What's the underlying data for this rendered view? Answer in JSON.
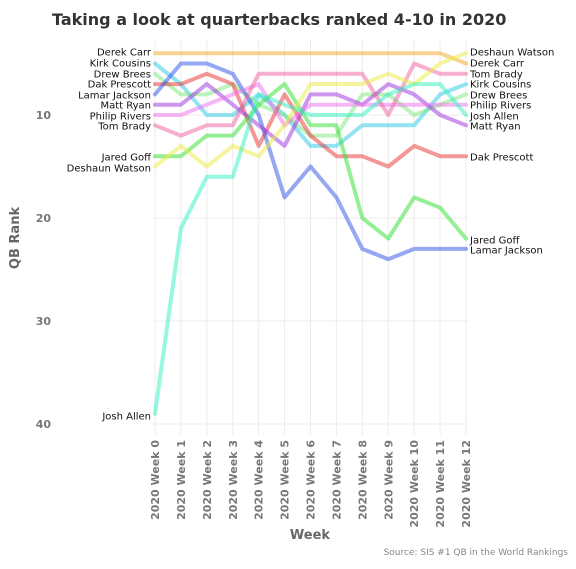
{
  "chart_data": {
    "type": "line",
    "title": "Taking a look at quarterbacks ranked 4-10 in 2020",
    "xlabel": "Week",
    "ylabel": "QB Rank",
    "caption": "Source: SIS #1 QB in the World Rankings",
    "categories": [
      "2020 Week 0",
      "2020 Week 1",
      "2020 Week 2",
      "2020 Week 3",
      "2020 Week 4",
      "2020 Week 5",
      "2020 Week 6",
      "2020 Week 7",
      "2020 Week 8",
      "2020 Week 9",
      "2020 Week 10",
      "2020 Week 11",
      "2020 Week 12"
    ],
    "ylim": [
      1,
      41
    ],
    "y_reversed": true,
    "yticks": [
      10,
      20,
      30,
      40
    ],
    "grid": true,
    "series": [
      {
        "name": "Derek Carr",
        "color": "#f5a623",
        "values": [
          4,
          4,
          4,
          4,
          4,
          4,
          4,
          4,
          4,
          4,
          4,
          4,
          5
        ]
      },
      {
        "name": "Kirk Cousins",
        "color": "#29c7e8",
        "values": [
          5,
          7,
          10,
          10,
          8,
          10,
          13,
          13,
          11,
          11,
          11,
          8,
          7
        ]
      },
      {
        "name": "Drew Brees",
        "color": "#7ce87c",
        "values": [
          6,
          8,
          8,
          7,
          9,
          10,
          12,
          12,
          8,
          8,
          10,
          9,
          8
        ]
      },
      {
        "name": "Dak Prescott",
        "color": "#e83030",
        "values": [
          7,
          7,
          6,
          7,
          13,
          8,
          12,
          14,
          14,
          15,
          13,
          14,
          14
        ]
      },
      {
        "name": "Lamar Jackson",
        "color": "#2e50e8",
        "values": [
          8,
          5,
          5,
          6,
          10,
          18,
          15,
          18,
          23,
          24,
          23,
          23,
          23
        ]
      },
      {
        "name": "Matt Ryan",
        "color": "#9b2ee0",
        "values": [
          9,
          9,
          7,
          9,
          11,
          13,
          8,
          8,
          9,
          7,
          8,
          10,
          11
        ]
      },
      {
        "name": "Philip Rivers",
        "color": "#f070f0",
        "values": [
          10,
          10,
          9,
          8,
          7,
          11,
          9,
          9,
          9,
          9,
          9,
          9,
          9
        ]
      },
      {
        "name": "Tom Brady",
        "color": "#f060a0",
        "values": [
          11,
          12,
          11,
          11,
          6,
          6,
          6,
          6,
          6,
          10,
          5,
          6,
          6
        ]
      },
      {
        "name": "Jared Goff",
        "color": "#2ee02e",
        "values": [
          14,
          14,
          12,
          12,
          9,
          7,
          11,
          11,
          20,
          22,
          18,
          19,
          22
        ]
      },
      {
        "name": "Deshaun Watson",
        "color": "#ecec40",
        "values": [
          15,
          13,
          15,
          13,
          14,
          11,
          7,
          7,
          7,
          6,
          7,
          5,
          4
        ]
      },
      {
        "name": "Josh Allen",
        "color": "#30f0c0",
        "values": [
          39,
          21,
          16,
          16,
          8,
          9,
          10,
          10,
          10,
          8,
          7,
          7,
          10
        ]
      }
    ],
    "left_labels": [
      "Derek Carr",
      "Kirk Cousins",
      "Drew Brees",
      "Dak Prescott",
      "Lamar Jackson",
      "Matt Ryan",
      "Philip Rivers",
      "Tom Brady",
      "Jared Goff",
      "Deshaun Watson",
      "Josh Allen"
    ],
    "right_labels": [
      "Deshaun Watson",
      "Derek Carr",
      "Tom Brady",
      "Kirk Cousins",
      "Drew Brees",
      "Philip Rivers",
      "Josh Allen",
      "Matt Ryan",
      "Dak Prescott",
      "Jared Goff",
      "Lamar Jackson"
    ]
  }
}
